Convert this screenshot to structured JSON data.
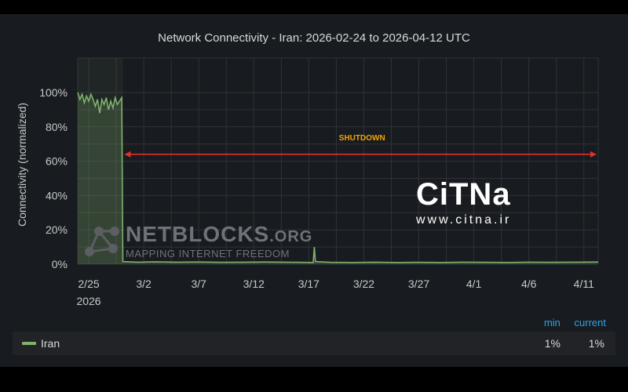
{
  "title": "Network Connectivity - Iran: 2026-02-24 to 2026-04-12 UTC",
  "legend": {
    "min_header": "min",
    "current_header": "current",
    "series_name": "Iran",
    "min_value": "1%",
    "current_value": "1%"
  },
  "annotation": {
    "label": "SHUTDOWN",
    "color": "#e02f2f",
    "label_color": "#f2a400"
  },
  "watermarks": {
    "citna_logo": "CiTNa",
    "citna_url": "www.citna.ir",
    "netblocks_name": "NETBLOCKS",
    "netblocks_suffix": ".ORG",
    "netblocks_tagline": "MAPPING INTERNET FREEDOM"
  },
  "colors": {
    "series": "#7eb26d",
    "background": "#181b1f",
    "grid": "#2f3236"
  },
  "chart_data": {
    "type": "area",
    "ylabel": "Connectivity (normalized)",
    "y_ticks": [
      "0%",
      "20%",
      "40%",
      "60%",
      "80%",
      "100%"
    ],
    "ylim": [
      0,
      100
    ],
    "x_tick_labels": [
      "2/25",
      "3/2",
      "3/7",
      "3/12",
      "3/17",
      "3/22",
      "3/27",
      "4/1",
      "4/6",
      "4/11"
    ],
    "x_tick_day_offsets": [
      1,
      6,
      11,
      16,
      21,
      26,
      31,
      36,
      41,
      46
    ],
    "x_year_label": "2026",
    "xlim_days": [
      0,
      47.3
    ],
    "series": [
      {
        "name": "Iran",
        "points": [
          [
            0,
            100
          ],
          [
            0.2,
            96
          ],
          [
            0.4,
            99
          ],
          [
            0.6,
            94
          ],
          [
            0.8,
            98
          ],
          [
            1.0,
            95
          ],
          [
            1.2,
            99
          ],
          [
            1.4,
            96
          ],
          [
            1.6,
            92
          ],
          [
            1.8,
            96
          ],
          [
            2.0,
            88
          ],
          [
            2.2,
            96
          ],
          [
            2.4,
            93
          ],
          [
            2.6,
            97
          ],
          [
            2.8,
            90
          ],
          [
            3.0,
            95
          ],
          [
            3.2,
            91
          ],
          [
            3.4,
            97
          ],
          [
            3.6,
            93
          ],
          [
            3.8,
            95
          ],
          [
            4.0,
            97
          ],
          [
            4.1,
            1.5
          ],
          [
            5.5,
            1.2
          ],
          [
            7,
            1.4
          ],
          [
            9,
            1.2
          ],
          [
            11,
            1.3
          ],
          [
            13,
            1.1
          ],
          [
            15,
            1.2
          ],
          [
            17,
            1.3
          ],
          [
            19,
            1.2
          ],
          [
            21.4,
            1.0
          ],
          [
            21.5,
            10
          ],
          [
            21.6,
            1.5
          ],
          [
            23,
            1.1
          ],
          [
            25,
            1.0
          ],
          [
            27,
            1.2
          ],
          [
            29,
            1.0
          ],
          [
            31,
            1.1
          ],
          [
            33,
            1.0
          ],
          [
            35,
            1.2
          ],
          [
            37,
            1.1
          ],
          [
            39,
            1.0
          ],
          [
            41,
            1.2
          ],
          [
            43,
            1.1
          ],
          [
            45,
            1.2
          ],
          [
            47.3,
            1.3
          ]
        ]
      }
    ],
    "shutdown_span_days": [
      4.1,
      47.3
    ],
    "shutdown_level": 64,
    "grid": true,
    "legend_position": "bottom"
  }
}
